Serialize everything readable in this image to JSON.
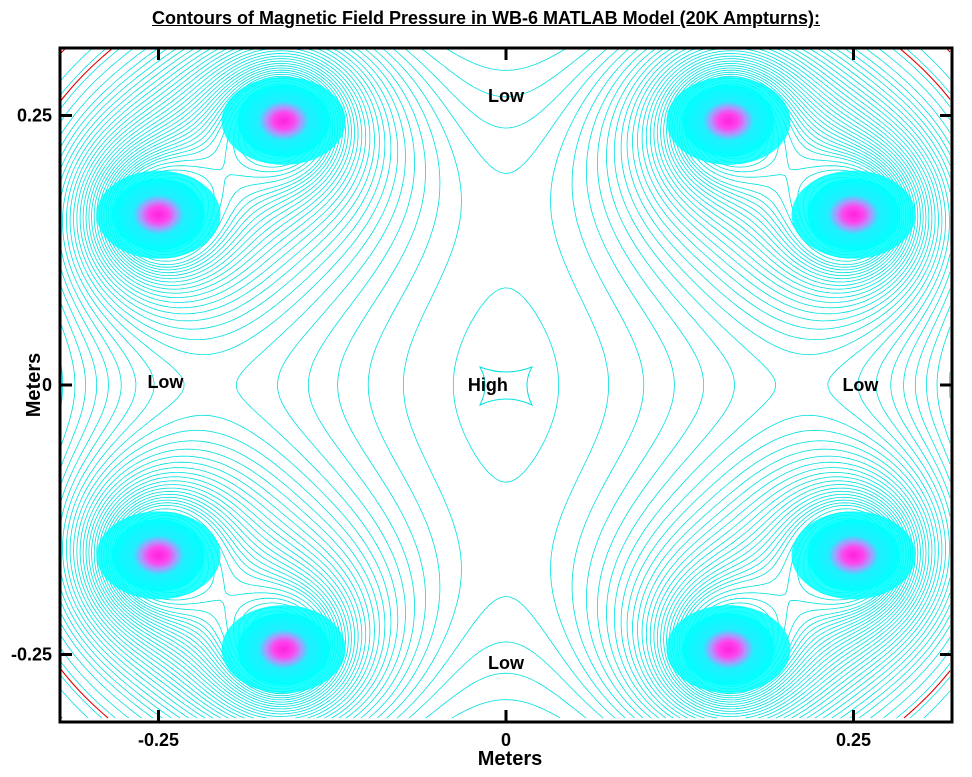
{
  "chart_data": {
    "type": "contour",
    "title": "Contours of Magnetic Field Pressure in WB-6 MATLAB Model (20K Ampturns):",
    "xlabel": "Meters",
    "ylabel": "Meters",
    "xlim": [
      -0.31,
      0.31
    ],
    "ylim": [
      -0.31,
      0.31
    ],
    "x_ticks": [
      -0.25,
      0,
      0.25
    ],
    "x_tick_labels": [
      "-0.25",
      "0",
      "0.25"
    ],
    "y_ticks": [
      -0.25,
      0,
      0.25
    ],
    "y_tick_labels": [
      "-0.25",
      "0",
      "0.25"
    ],
    "grid": false,
    "field_peaks": [
      {
        "x": -0.16,
        "y": 0.245
      },
      {
        "x": -0.25,
        "y": 0.158
      },
      {
        "x": 0.16,
        "y": 0.245
      },
      {
        "x": 0.25,
        "y": 0.158
      },
      {
        "x": -0.25,
        "y": -0.158
      },
      {
        "x": -0.16,
        "y": -0.245
      },
      {
        "x": 0.16,
        "y": -0.245
      },
      {
        "x": 0.25,
        "y": -0.158
      }
    ],
    "annotations": [
      {
        "text": "Low",
        "x": 0.0,
        "y": 0.268
      },
      {
        "text": "Low",
        "x": -0.245,
        "y": 0.003
      },
      {
        "text": "Low",
        "x": 0.255,
        "y": 0.0
      },
      {
        "text": "Low",
        "x": 0.0,
        "y": -0.258
      },
      {
        "text": "High",
        "x": -0.013,
        "y": -0.0
      }
    ],
    "colors": {
      "contour_lines": "#00e0e0",
      "separatrix": "#e00000",
      "peak_core": "#ff33dd",
      "peak_halo": "#00ffff",
      "frame": "#000000"
    }
  }
}
